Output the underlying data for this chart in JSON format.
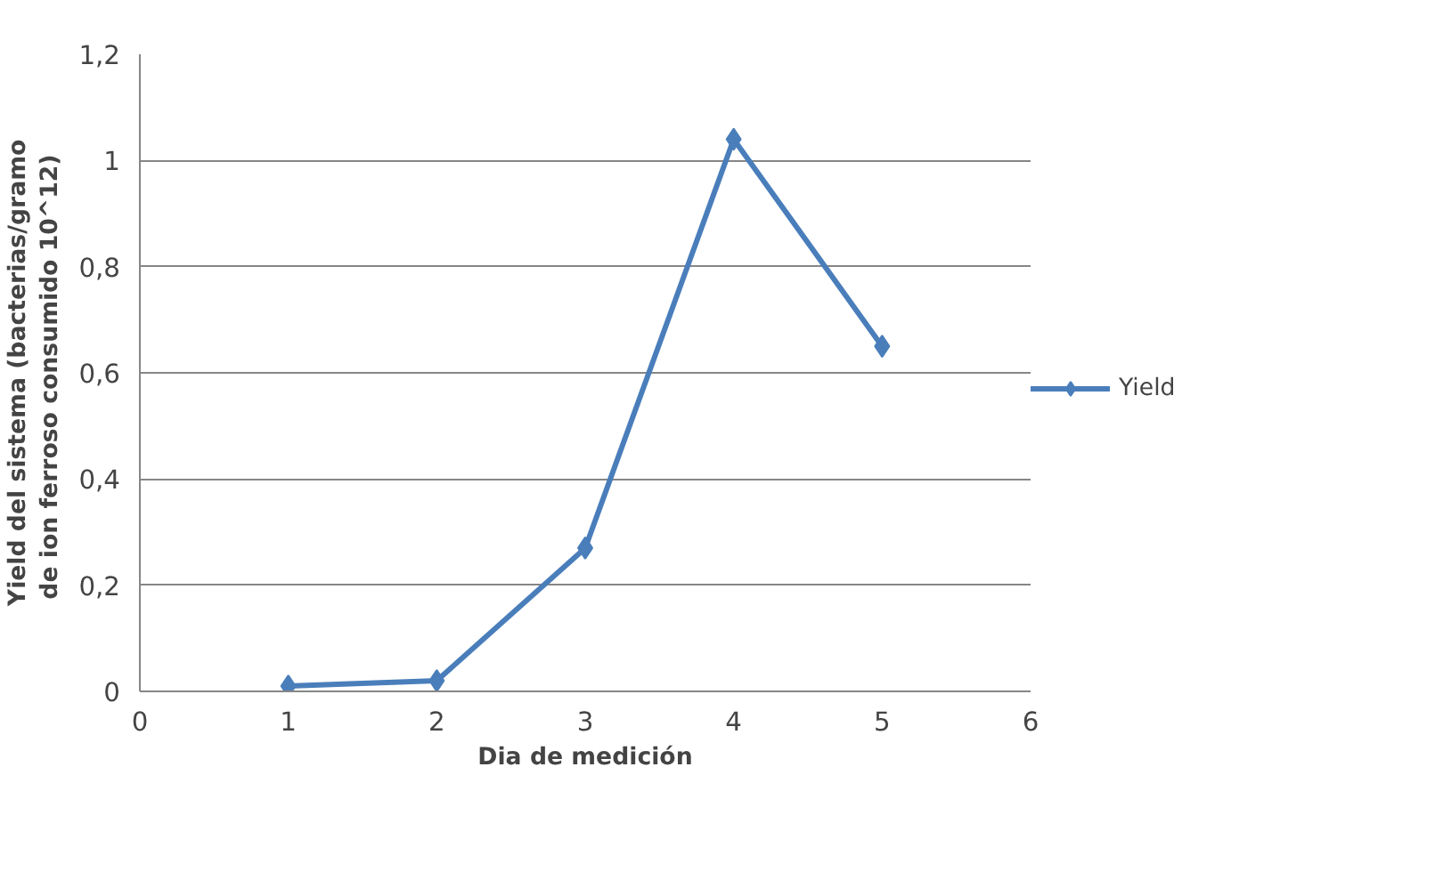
{
  "chart_data": {
    "type": "line",
    "xlabel": "Dia de medición",
    "ylabel": "Yield del sistema (bacterias/gramo de ion ferroso consumido  10^12)",
    "x": [
      1,
      2,
      3,
      4,
      5
    ],
    "series": [
      {
        "name": "Yield",
        "color": "#4a7ebb",
        "values": [
          0.01,
          0.02,
          0.27,
          1.04,
          0.65
        ]
      }
    ],
    "xlim": [
      0,
      6
    ],
    "xticks": [
      0,
      1,
      2,
      3,
      4,
      5,
      6
    ],
    "ylim": [
      0,
      1.2
    ],
    "yticks": [
      0,
      {
        "value": 0.2,
        "label": "0,2"
      },
      {
        "value": 0.4,
        "label": "0,4"
      },
      {
        "value": 0.6,
        "label": "0,6"
      },
      {
        "value": 0.8,
        "label": "0,8"
      },
      1,
      {
        "value": 1.2,
        "label": "1,2"
      }
    ],
    "grid": "y",
    "legend": "right",
    "marker": "diamond",
    "line_style": "solid"
  }
}
